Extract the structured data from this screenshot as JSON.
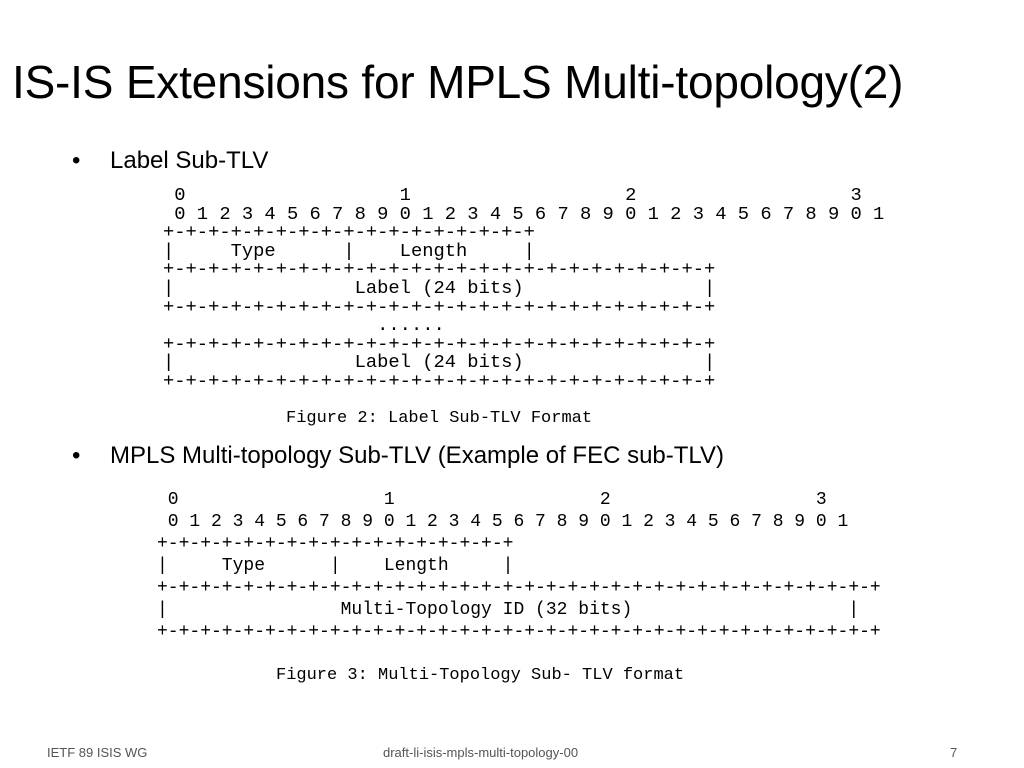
{
  "title": "IS-IS Extensions for MPLS Multi-topology(2)",
  "sections": [
    {
      "bullet": "Label Sub-TLV",
      "figure": {
        "lines": [
          " 0                   1                   2                   3",
          " 0 1 2 3 4 5 6 7 8 9 0 1 2 3 4 5 6 7 8 9 0 1 2 3 4 5 6 7 8 9 0 1",
          "+-+-+-+-+-+-+-+-+-+-+-+-+-+-+-+-+",
          "|     Type      |    Length     |",
          "+-+-+-+-+-+-+-+-+-+-+-+-+-+-+-+-+-+-+-+-+-+-+-+-+",
          "|                Label (24 bits)                |",
          "+-+-+-+-+-+-+-+-+-+-+-+-+-+-+-+-+-+-+-+-+-+-+-+-+",
          "                   ......",
          "+-+-+-+-+-+-+-+-+-+-+-+-+-+-+-+-+-+-+-+-+-+-+-+-+",
          "|                Label (24 bits)                |",
          "+-+-+-+-+-+-+-+-+-+-+-+-+-+-+-+-+-+-+-+-+-+-+-+-+"
        ],
        "caption": "Figure 2: Label Sub-TLV Format"
      }
    },
    {
      "bullet": "MPLS Multi-topology Sub-TLV (Example of FEC sub-TLV)",
      "figure": {
        "lines": [
          " 0                   1                   2                   3",
          " 0 1 2 3 4 5 6 7 8 9 0 1 2 3 4 5 6 7 8 9 0 1 2 3 4 5 6 7 8 9 0 1",
          "+-+-+-+-+-+-+-+-+-+-+-+-+-+-+-+-+",
          "|     Type      |    Length     |",
          "+-+-+-+-+-+-+-+-+-+-+-+-+-+-+-+-+-+-+-+-+-+-+-+-+-+-+-+-+-+-+-+-+-+",
          "|                Multi-Topology ID (32 bits)                    |",
          "+-+-+-+-+-+-+-+-+-+-+-+-+-+-+-+-+-+-+-+-+-+-+-+-+-+-+-+-+-+-+-+-+-+"
        ],
        "caption": "Figure 3: Multi-Topology Sub- TLV format"
      }
    }
  ],
  "footer": {
    "left": "IETF 89 ISIS WG",
    "center": "draft-li-isis-mpls-multi-topology-00",
    "right": "7"
  }
}
